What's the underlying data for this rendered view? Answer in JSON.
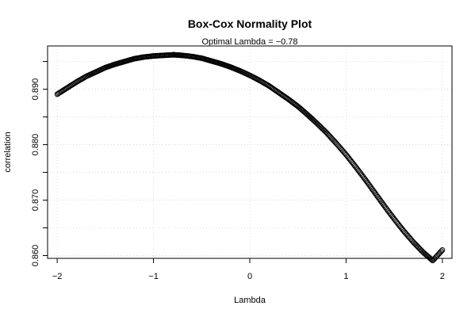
{
  "chart_data": {
    "type": "scatter",
    "title": "Box-Cox Normality Plot",
    "subtitle": "Optimal Lambda = −0.78",
    "xlabel": "Lambda",
    "ylabel": "correlation",
    "xlim": [
      -2.1,
      2.1
    ],
    "ylim": [
      0.8595,
      0.8978
    ],
    "x_ticks": [
      {
        "value": -2,
        "label": "−2"
      },
      {
        "value": -1,
        "label": "−1"
      },
      {
        "value": 0,
        "label": "0"
      },
      {
        "value": 1,
        "label": "1"
      },
      {
        "value": 2,
        "label": "2"
      }
    ],
    "y_ticks": [
      {
        "value": 0.86,
        "label": "0.860"
      },
      {
        "value": 0.865,
        "label": ""
      },
      {
        "value": 0.87,
        "label": "0.870"
      },
      {
        "value": 0.875,
        "label": ""
      },
      {
        "value": 0.88,
        "label": "0.880"
      },
      {
        "value": 0.885,
        "label": ""
      },
      {
        "value": 0.89,
        "label": "0.890"
      },
      {
        "value": 0.895,
        "label": ""
      }
    ],
    "grid": true,
    "marker": "open-circle",
    "marker_color": "#000000",
    "series": [
      {
        "x": [
          -2.0,
          -1.9,
          -1.8,
          -1.7,
          -1.6,
          -1.5,
          -1.4,
          -1.3,
          -1.2,
          -1.1,
          -1.0,
          -0.9,
          -0.8,
          -0.78,
          -0.7,
          -0.6,
          -0.5,
          -0.4,
          -0.3,
          -0.2,
          -0.1,
          0.0,
          0.1,
          0.2,
          0.3,
          0.4,
          0.5,
          0.6,
          0.7,
          0.8,
          0.9,
          1.0,
          1.1,
          1.2,
          1.3,
          1.4,
          1.5,
          1.6,
          1.7,
          1.8,
          1.9,
          2.0
        ],
        "y": [
          0.8891,
          0.8902,
          0.8913,
          0.8923,
          0.8931,
          0.8939,
          0.8945,
          0.895,
          0.8955,
          0.8958,
          0.896,
          0.8961,
          0.8962,
          0.8962,
          0.8961,
          0.8959,
          0.8956,
          0.8951,
          0.8946,
          0.894,
          0.8933,
          0.8925,
          0.8916,
          0.8906,
          0.8894,
          0.8882,
          0.8869,
          0.8854,
          0.8838,
          0.8821,
          0.8802,
          0.8782,
          0.876,
          0.8737,
          0.8713,
          0.8689,
          0.8666,
          0.8644,
          0.8624,
          0.8606,
          0.8591,
          0.861
        ]
      }
    ]
  }
}
